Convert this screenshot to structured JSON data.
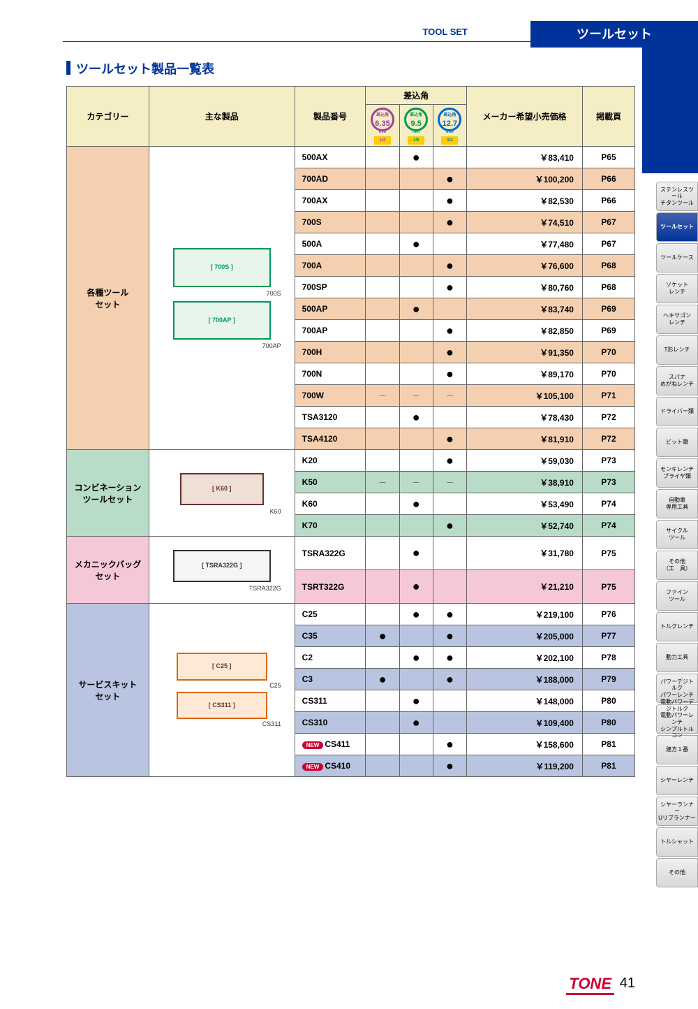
{
  "header": {
    "en": "TOOL SET",
    "jp": "ツールセット"
  },
  "title": "ツールセット製品一覧表",
  "cols": {
    "cat": "カテゴリー",
    "prod": "主な製品",
    "pn": "製品番号",
    "drive": "差込角",
    "price": "メーカー希望小売価格",
    "page": "掲載頁"
  },
  "drives": [
    {
      "num": "6.35",
      "frac": "1/4"
    },
    {
      "num": "9.5",
      "frac": "3/8"
    },
    {
      "num": "12.7",
      "frac": "1/2"
    }
  ],
  "groups": [
    {
      "cat": "各種ツール\nセット",
      "cls": "a",
      "img": [
        "700S",
        "700AP"
      ],
      "rows": [
        {
          "pn": "500AX",
          "d": [
            0,
            1,
            0
          ],
          "price": "￥83,410",
          "pg": "P65"
        },
        {
          "pn": "700AD",
          "d": [
            0,
            0,
            1
          ],
          "price": "￥100,200",
          "pg": "P66",
          "alt": 1
        },
        {
          "pn": "700AX",
          "d": [
            0,
            0,
            1
          ],
          "price": "￥82,530",
          "pg": "P66"
        },
        {
          "pn": "700S",
          "d": [
            0,
            0,
            1
          ],
          "price": "￥74,510",
          "pg": "P67",
          "alt": 1
        },
        {
          "pn": "500A",
          "d": [
            0,
            1,
            0
          ],
          "price": "￥77,480",
          "pg": "P67"
        },
        {
          "pn": "700A",
          "d": [
            0,
            0,
            1
          ],
          "price": "￥76,600",
          "pg": "P68",
          "alt": 1
        },
        {
          "pn": "700SP",
          "d": [
            0,
            0,
            1
          ],
          "price": "￥80,760",
          "pg": "P68"
        },
        {
          "pn": "500AP",
          "d": [
            0,
            1,
            0
          ],
          "price": "￥83,740",
          "pg": "P69",
          "alt": 1
        },
        {
          "pn": "700AP",
          "d": [
            0,
            0,
            1
          ],
          "price": "￥82,850",
          "pg": "P69"
        },
        {
          "pn": "700H",
          "d": [
            0,
            0,
            1
          ],
          "price": "￥91,350",
          "pg": "P70",
          "alt": 1
        },
        {
          "pn": "700N",
          "d": [
            0,
            0,
            1
          ],
          "price": "￥89,170",
          "pg": "P70"
        },
        {
          "pn": "700W",
          "d": [
            -1,
            -1,
            -1
          ],
          "price": "￥105,100",
          "pg": "P71",
          "alt": 1
        },
        {
          "pn": "TSA3120",
          "d": [
            0,
            1,
            0
          ],
          "price": "￥78,430",
          "pg": "P72"
        },
        {
          "pn": "TSA4120",
          "d": [
            0,
            0,
            1
          ],
          "price": "￥81,910",
          "pg": "P72",
          "alt": 1
        }
      ]
    },
    {
      "cat": "コンビネーション\nツールセット",
      "cls": "b",
      "img": [
        "K60"
      ],
      "rows": [
        {
          "pn": "K20",
          "d": [
            0,
            0,
            1
          ],
          "price": "￥59,030",
          "pg": "P73"
        },
        {
          "pn": "K50",
          "d": [
            -1,
            -1,
            -1
          ],
          "price": "￥38,910",
          "pg": "P73",
          "alt": 1
        },
        {
          "pn": "K60",
          "d": [
            0,
            1,
            0
          ],
          "price": "￥53,490",
          "pg": "P74"
        },
        {
          "pn": "K70",
          "d": [
            0,
            0,
            1
          ],
          "price": "￥52,740",
          "pg": "P74",
          "alt": 1
        }
      ]
    },
    {
      "cat": "メカニックバッグ\nセット",
      "cls": "c",
      "img": [
        "TSRA322G"
      ],
      "rows": [
        {
          "pn": "TSRA322G",
          "d": [
            0,
            1,
            0
          ],
          "price": "￥31,780",
          "pg": "P75",
          "h": 48
        },
        {
          "pn": "TSRT322G",
          "d": [
            0,
            1,
            0
          ],
          "price": "￥21,210",
          "pg": "P75",
          "alt": 1,
          "h": 48
        }
      ]
    },
    {
      "cat": "サービスキット\nセット",
      "cls": "d",
      "img": [
        "C25",
        "CS311"
      ],
      "rows": [
        {
          "pn": "C25",
          "d": [
            0,
            1,
            1
          ],
          "price": "￥219,100",
          "pg": "P76"
        },
        {
          "pn": "C35",
          "d": [
            1,
            0,
            1
          ],
          "price": "￥205,000",
          "pg": "P77",
          "alt": 1
        },
        {
          "pn": "C2",
          "d": [
            0,
            1,
            1
          ],
          "price": "￥202,100",
          "pg": "P78"
        },
        {
          "pn": "C3",
          "d": [
            1,
            0,
            1
          ],
          "price": "￥188,000",
          "pg": "P79",
          "alt": 1
        },
        {
          "pn": "CS311",
          "d": [
            0,
            1,
            0
          ],
          "price": "￥148,000",
          "pg": "P80"
        },
        {
          "pn": "CS310",
          "d": [
            0,
            1,
            0
          ],
          "price": "￥109,400",
          "pg": "P80",
          "alt": 1
        },
        {
          "pn": "CS411",
          "d": [
            0,
            0,
            1
          ],
          "price": "￥158,600",
          "pg": "P81",
          "new": 1
        },
        {
          "pn": "CS410",
          "d": [
            0,
            0,
            1
          ],
          "price": "￥119,200",
          "pg": "P81",
          "new": 1,
          "alt": 1
        }
      ]
    }
  ],
  "sidetabs": [
    "ステンレスツール\nチタンツール",
    "ツールセット",
    "ツールケース",
    "ソケット\nレンチ",
    "ヘキサゴン\nレンチ",
    "T形レンチ",
    "スパナ\nめがねレンチ",
    "ドライバー類",
    "ビット類",
    "モンキレンチ\nプライヤ類",
    "自動車\n専用工具",
    "サイクル\nツール",
    "その他\n（工　具）",
    "ファイン\nツール",
    "トルクレンチ",
    "動力工具",
    "パワーデジトルク\nパワーレンチ",
    "電動パワーデジトルク\n電動パワーレンチ\nシンプルトルコン",
    "建方１番",
    "シヤーレンチ",
    "シヤーランナー\nUリブランナー",
    "トルシャット",
    "その他"
  ],
  "sidetab_active": 1,
  "page_num": "41",
  "logo": "TONE",
  "new_label": "NEW"
}
